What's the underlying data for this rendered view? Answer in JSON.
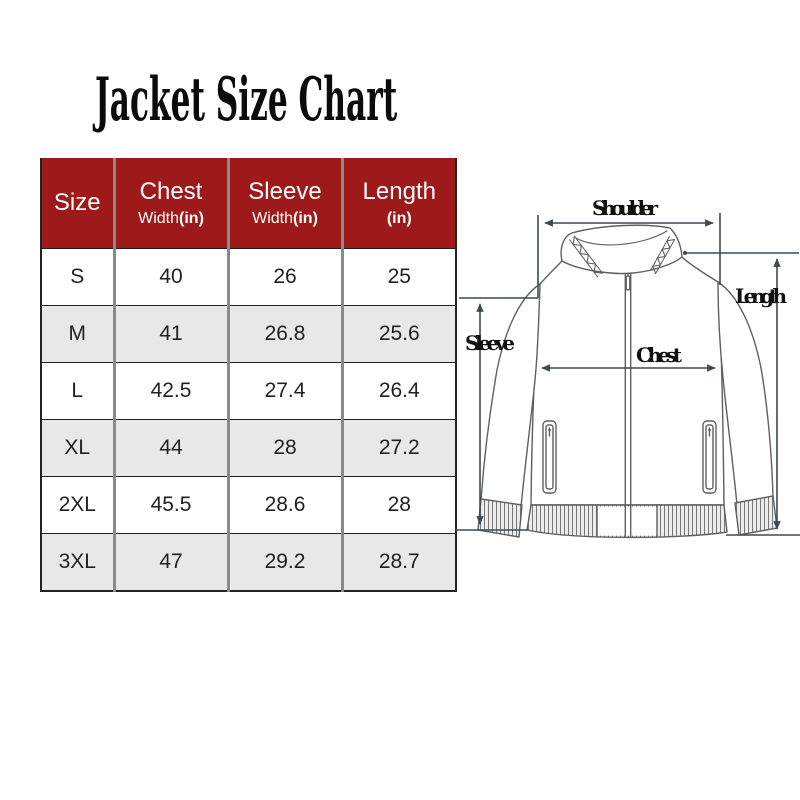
{
  "title": "Jacket Size Chart",
  "table": {
    "header_bg": "#9E1A1A",
    "stripe_bg": "#E8E8E8",
    "columns": [
      {
        "key": "size",
        "label": "Size",
        "sub_normal": "",
        "sub_bold": ""
      },
      {
        "key": "chest",
        "label": "Chest",
        "sub_normal": "Width",
        "sub_bold": "(in)"
      },
      {
        "key": "sleeve",
        "label": "Sleeve",
        "sub_normal": "Width",
        "sub_bold": "(in)"
      },
      {
        "key": "length",
        "label": "Length",
        "sub_normal": "",
        "sub_bold": "(in)"
      }
    ],
    "rows": [
      [
        "S",
        "40",
        "26",
        "25"
      ],
      [
        "M",
        "41",
        "26.8",
        "25.6"
      ],
      [
        "L",
        "42.5",
        "27.4",
        "26.4"
      ],
      [
        "XL",
        "44",
        "28",
        "27.2"
      ],
      [
        "2XL",
        "45.5",
        "28.6",
        "28"
      ],
      [
        "3XL",
        "47",
        "29.2",
        "28.7"
      ]
    ]
  },
  "diagram": {
    "labels": {
      "shoulder": "Shoulder",
      "length": "Length",
      "sleeve": "Sleeve",
      "chest": "Chest"
    }
  },
  "chart_data": {
    "type": "table",
    "title": "Jacket Size Chart",
    "columns": [
      "Size",
      "Chest Width(in)",
      "Sleeve Width(in)",
      "Length (in)"
    ],
    "rows": [
      [
        "S",
        40,
        26,
        25
      ],
      [
        "M",
        41,
        26.8,
        25.6
      ],
      [
        "L",
        42.5,
        27.4,
        26.4
      ],
      [
        "XL",
        44,
        28,
        27.2
      ],
      [
        "2XL",
        45.5,
        28.6,
        28
      ],
      [
        "3XL",
        47,
        29.2,
        28.7
      ]
    ]
  }
}
